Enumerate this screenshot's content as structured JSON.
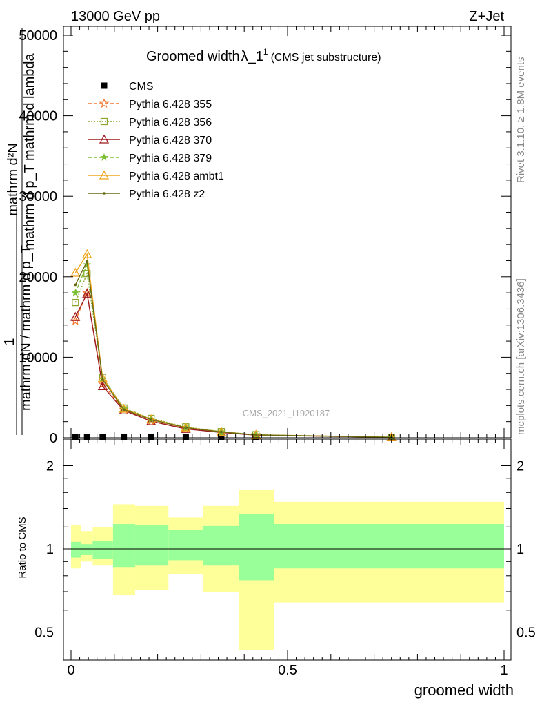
{
  "header": {
    "energy_label": "13000 GeV pp",
    "process_label": "Z+Jet",
    "title_main": "Groomed width",
    "title_lambda": "λ_1",
    "title_sup": "1",
    "title_sub": "(CMS jet substructure)",
    "side_rivet": "Rivet 3.1.10, ≥ 1.8M events",
    "side_mcplots": "mcplots.cern.ch [arXiv:1306.3436]",
    "watermark": "CMS_2021_I1920187"
  },
  "axes": {
    "ylabel_top_num": "mathrm d²N",
    "ylabel_top_den": "mathrm d p_T mathrm d lambda",
    "ylabel_main_num": "1",
    "ylabel_main_den": "mathrm dN / mathrm d p_T",
    "ylabel_ratio": "Ratio to CMS",
    "xlabel": "groomed width"
  },
  "colors": {
    "cms": "#000000",
    "p355": "#f4772e",
    "p356": "#8aa62c",
    "p370": "#9c1a1f",
    "p379": "#7cbf34",
    "ambt1": "#efa51c",
    "z2": "#6a6a14",
    "band_outer": "#ffff99",
    "band_inner": "#99ff99"
  },
  "chart_data": {
    "type": "line",
    "main": {
      "xlim": [
        0,
        1
      ],
      "ylim": [
        0,
        50000
      ],
      "y_ticks": [
        "0",
        "10000",
        "20000",
        "30000",
        "40000",
        "50000"
      ],
      "x_ticks": [
        "0",
        "0.5",
        "1"
      ],
      "series": [
        {
          "name": "CMS",
          "color": "#000000",
          "marker": "square",
          "x": [
            0.01,
            0.037,
            0.073,
            0.122,
            0.185,
            0.265,
            0.347,
            0.427,
            0.74
          ],
          "y": [
            0,
            0,
            0,
            0,
            0,
            0,
            0,
            0,
            0
          ]
        },
        {
          "name": "Pythia 6.428 355",
          "color": "#f4772e",
          "marker": "star",
          "dash": "dashed",
          "x": [
            0.01,
            0.037,
            0.073,
            0.122,
            0.185,
            0.265,
            0.347,
            0.427,
            0.74
          ],
          "y": [
            14500,
            18000,
            6700,
            3500,
            2100,
            1150,
            680,
            350,
            60
          ]
        },
        {
          "name": "Pythia 6.428 356",
          "color": "#8aa62c",
          "marker": "square-open",
          "dash": "dotted",
          "x": [
            0.01,
            0.037,
            0.073,
            0.122,
            0.185,
            0.265,
            0.347,
            0.427,
            0.74
          ],
          "y": [
            16800,
            20400,
            7500,
            3700,
            2400,
            1350,
            760,
            380,
            70
          ]
        },
        {
          "name": "Pythia 6.428 370",
          "color": "#9c1a1f",
          "marker": "triangle-open",
          "dash": "solid",
          "x": [
            0.01,
            0.037,
            0.073,
            0.122,
            0.185,
            0.265,
            0.347,
            0.427,
            0.74
          ],
          "y": [
            15000,
            17900,
            6400,
            3400,
            2050,
            1100,
            650,
            330,
            55
          ]
        },
        {
          "name": "Pythia 6.428 379",
          "color": "#7cbf34",
          "marker": "star-small",
          "dash": "dashed",
          "x": [
            0.01,
            0.037,
            0.073,
            0.122,
            0.185,
            0.265,
            0.347,
            0.427,
            0.74
          ],
          "y": [
            18000,
            21500,
            7300,
            3600,
            2300,
            1300,
            740,
            370,
            65
          ]
        },
        {
          "name": "Pythia 6.428 ambt1",
          "color": "#efa51c",
          "marker": "triangle-open",
          "dash": "solid",
          "x": [
            0.01,
            0.037,
            0.073,
            0.122,
            0.185,
            0.265,
            0.347,
            0.427,
            0.74
          ],
          "y": [
            20500,
            22800,
            7400,
            3600,
            2300,
            1280,
            730,
            360,
            62
          ]
        },
        {
          "name": "Pythia 6.428 z2",
          "color": "#6a6a14",
          "marker": "dot",
          "dash": "solid",
          "x": [
            0.01,
            0.037,
            0.073,
            0.122,
            0.185,
            0.265,
            0.347,
            0.427,
            0.74
          ],
          "y": [
            19000,
            21900,
            7200,
            3500,
            2250,
            1250,
            720,
            355,
            60
          ]
        }
      ]
    },
    "ratio": {
      "ylim": [
        0.4,
        2.35
      ],
      "y_ticks": [
        "0.5",
        "1",
        "2"
      ],
      "bins": [
        {
          "x0": 0.0,
          "x1": 0.023,
          "inner": [
            0.93,
            1.06
          ],
          "outer": [
            0.85,
            1.22
          ]
        },
        {
          "x0": 0.023,
          "x1": 0.05,
          "inner": [
            0.95,
            1.04
          ],
          "outer": [
            0.9,
            1.16
          ]
        },
        {
          "x0": 0.05,
          "x1": 0.097,
          "inner": [
            0.92,
            1.07
          ],
          "outer": [
            0.87,
            1.2
          ]
        },
        {
          "x0": 0.097,
          "x1": 0.148,
          "inner": [
            0.86,
            1.23
          ],
          "outer": [
            0.68,
            1.45
          ]
        },
        {
          "x0": 0.148,
          "x1": 0.225,
          "inner": [
            0.87,
            1.22
          ],
          "outer": [
            0.71,
            1.43
          ]
        },
        {
          "x0": 0.225,
          "x1": 0.305,
          "inner": [
            0.91,
            1.17
          ],
          "outer": [
            0.81,
            1.3
          ]
        },
        {
          "x0": 0.305,
          "x1": 0.388,
          "inner": [
            0.87,
            1.21
          ],
          "outer": [
            0.7,
            1.43
          ]
        },
        {
          "x0": 0.388,
          "x1": 0.469,
          "inner": [
            0.77,
            1.34
          ],
          "outer": [
            0.43,
            1.64
          ]
        },
        {
          "x0": 0.469,
          "x1": 1.0,
          "inner": [
            0.85,
            1.23
          ],
          "outer": [
            0.64,
            1.48
          ]
        }
      ]
    }
  }
}
